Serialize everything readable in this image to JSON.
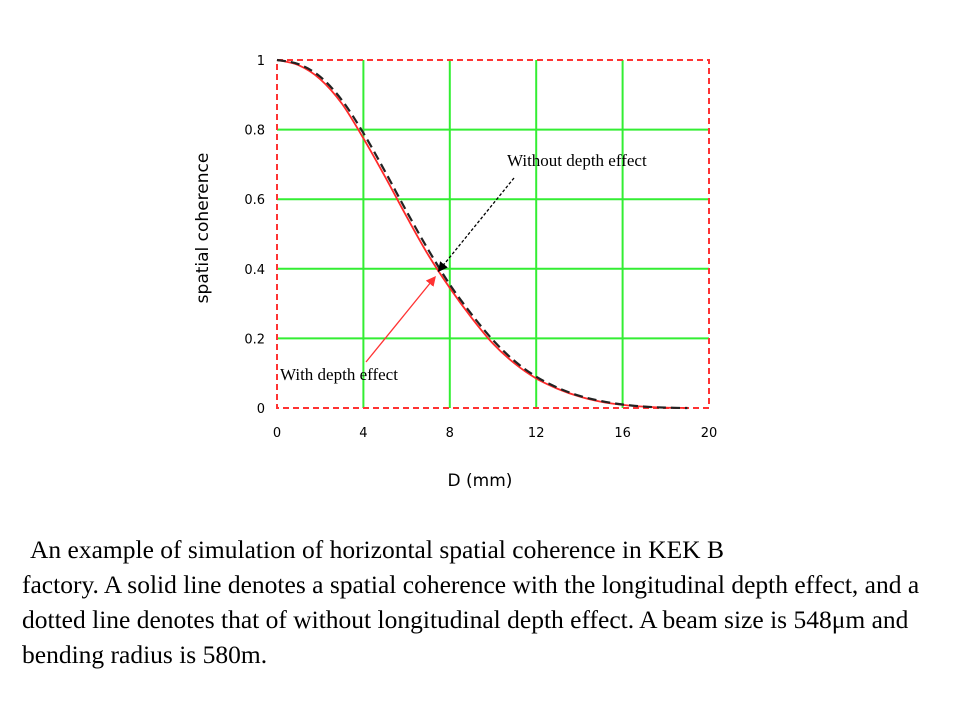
{
  "chart_data": {
    "type": "line",
    "xlabel": "D (mm)",
    "ylabel": "spatial coherence",
    "xlim": [
      0,
      20
    ],
    "ylim": [
      0,
      1
    ],
    "xticks": [
      "0",
      "4",
      "8",
      "12",
      "16",
      "20"
    ],
    "yticks": [
      "0",
      "0.2",
      "0.4",
      "0.6",
      "0.8",
      "1"
    ],
    "grid": true,
    "grid_color": "#33ee33",
    "series": [
      {
        "style": "solid",
        "color": "#ff2a2a",
        "x": [
          0,
          1,
          2,
          3,
          4,
          5,
          6,
          7,
          8,
          9,
          10,
          11,
          12,
          13,
          14,
          15,
          16,
          17,
          18,
          19
        ],
        "y": [
          1.0,
          0.985,
          0.945,
          0.875,
          0.775,
          0.665,
          0.55,
          0.44,
          0.345,
          0.26,
          0.185,
          0.128,
          0.085,
          0.055,
          0.033,
          0.018,
          0.009,
          0.004,
          0.001,
          0.0
        ]
      },
      {
        "style": "dashed",
        "color": "#222222",
        "x": [
          0,
          1,
          2,
          3,
          4,
          5,
          6,
          7,
          8,
          9,
          10,
          11,
          12,
          13,
          14,
          15,
          16,
          17,
          18,
          19
        ],
        "y": [
          1.0,
          0.988,
          0.952,
          0.885,
          0.79,
          0.68,
          0.565,
          0.455,
          0.355,
          0.27,
          0.195,
          0.135,
          0.09,
          0.058,
          0.035,
          0.02,
          0.01,
          0.004,
          0.001,
          0.0
        ]
      }
    ],
    "annotations": [
      {
        "text": "Without depth effect",
        "arrow_color": "#000000",
        "arrow_style": "dashed",
        "points_to": [
          7.5,
          0.395
        ]
      },
      {
        "text": "With depth effect",
        "arrow_color": "#ff3333",
        "arrow_style": "solid",
        "points_to": [
          7.3,
          0.375
        ]
      }
    ]
  },
  "caption": {
    "line1": "An example of simulation of horizontal spatial coherence in KEK B",
    "rest": "factory.  A solid line denotes a spatial coherence with the longitudinal depth effect, and a dotted line denotes that of without longitudinal depth effect.  A beam size is 548μm and bending radius is 580m."
  }
}
